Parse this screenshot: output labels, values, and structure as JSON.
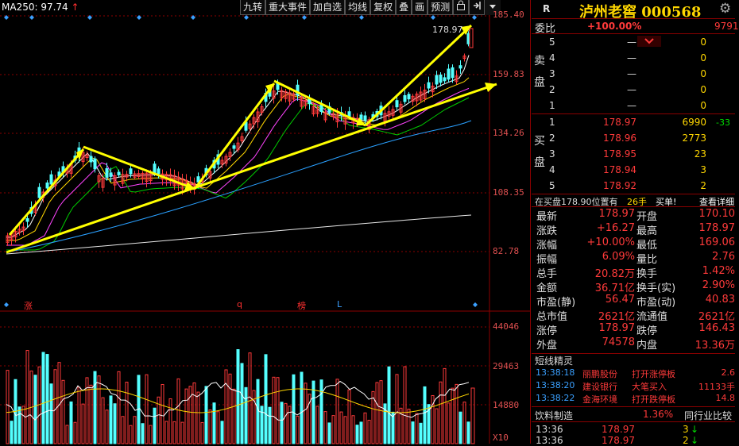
{
  "chart": {
    "ma_label": "MA250: 97.74",
    "ma_arrow": "↑",
    "y_labels": [
      "185.40",
      "159.83",
      "134.26",
      "108.35",
      "82.78"
    ],
    "latest_price_tag": "178.97",
    "vol_labels": [
      "44046",
      "29463",
      "14880"
    ],
    "vol_unit": "X10",
    "marks": [
      {
        "text": "涨",
        "color": "red"
      },
      {
        "text": "q",
        "color": "red"
      },
      {
        "text": "榜",
        "color": "red"
      },
      {
        "text": "L",
        "color": "blue"
      }
    ]
  },
  "toolbar": {
    "buttons": [
      "九转",
      "重大事件",
      "加自选",
      "均线",
      "复权",
      "叠",
      "画",
      "预测"
    ],
    "lock_icon": "lock-icon",
    "expand_icon": "expand-right-icon",
    "dropdown_icon": "dropdown-icon"
  },
  "panel": {
    "r_label": "R",
    "stock_name": "泸州老窖",
    "stock_code": "000568",
    "gear_icon": "gear-icon",
    "weibi_label": "委比",
    "weibi_value": "+100.00%",
    "weicha_value": "9791",
    "sell_label": "卖盘",
    "buy_label": "买盘",
    "sell_orders": [
      {
        "idx": "5",
        "price": "—",
        "vol": "0"
      },
      {
        "idx": "4",
        "price": "—",
        "vol": "0"
      },
      {
        "idx": "3",
        "price": "—",
        "vol": "0"
      },
      {
        "idx": "2",
        "price": "—",
        "vol": "0"
      },
      {
        "idx": "1",
        "price": "—",
        "vol": "0"
      }
    ],
    "buy_orders": [
      {
        "idx": "1",
        "price": "178.97",
        "vol": "6990",
        "chg": "-33"
      },
      {
        "idx": "2",
        "price": "178.96",
        "vol": "2773",
        "chg": ""
      },
      {
        "idx": "3",
        "price": "178.95",
        "vol": "23",
        "chg": ""
      },
      {
        "idx": "4",
        "price": "178.94",
        "vol": "3",
        "chg": ""
      },
      {
        "idx": "5",
        "price": "178.92",
        "vol": "2",
        "chg": ""
      }
    ],
    "ob_info": {
      "text1": "在买盘178.90位置有",
      "text2": "26手",
      "text3": "买单!",
      "link": "查看详细"
    },
    "stats": [
      {
        "l": "最新",
        "lv": "178.97",
        "r": "开盘",
        "rv": "170.10"
      },
      {
        "l": "涨跌",
        "lv": "+16.27",
        "r": "最高",
        "rv": "178.97"
      },
      {
        "l": "涨幅",
        "lv": "+10.00%",
        "r": "最低",
        "rv": "169.06"
      },
      {
        "l": "振幅",
        "lv": "6.09%",
        "r": "量比",
        "rv": "2.76"
      },
      {
        "l": "总手",
        "lv": "20.82万",
        "r": "换手",
        "rv": "1.42%"
      },
      {
        "l": "金额",
        "lv": "36.71亿",
        "r": "换手(实)",
        "rv": "2.90%"
      },
      {
        "l": "市盈(静)",
        "lv": "56.47",
        "r": "市盈(动)",
        "rv": "40.83"
      },
      {
        "l": "总市值",
        "lv": "2621亿",
        "r": "流通值",
        "rv": "2621亿"
      },
      {
        "l": "涨停",
        "lv": "178.97",
        "r": "跌停",
        "rv": "146.43"
      },
      {
        "l": "外盘",
        "lv": "74578",
        "r": "内盘",
        "rv": "13.36万"
      }
    ],
    "jingling_title": "短线精灵",
    "jingling": [
      {
        "t": "13:38:18",
        "n": "丽鹏股份",
        "e": "打开涨停板",
        "v": "2.6"
      },
      {
        "t": "13:38:20",
        "n": "建设银行",
        "e": "大笔买入",
        "v": "11133手"
      },
      {
        "t": "13:38:22",
        "n": "金海环境",
        "e": "打开跌停板",
        "v": "14.8"
      }
    ],
    "industry": {
      "name": "饮料制造",
      "pct": "1.36%",
      "compare": "同行业比较"
    },
    "ticks": [
      {
        "t": "13:36",
        "p": "178.97",
        "v": "3"
      },
      {
        "t": "13:36",
        "p": "178.97",
        "v": "2"
      }
    ]
  }
}
